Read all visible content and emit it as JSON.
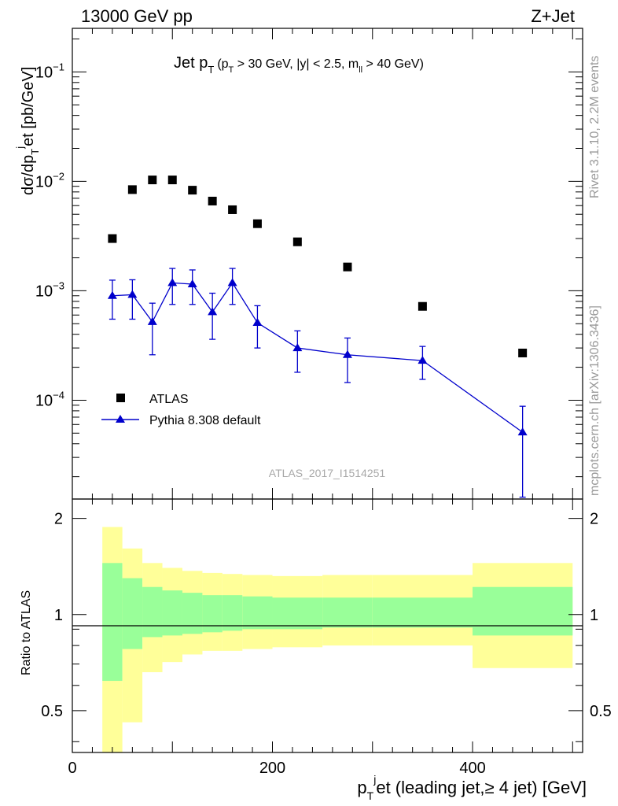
{
  "header": {
    "left": "13000 GeV pp",
    "right": "Z+Jet"
  },
  "title": {
    "main": "Jet p",
    "main_sub": "T",
    "cond_a": "(p",
    "cond_a_sub": "T",
    "cond_b": " > 30 GeV, |y| < 2.5, m",
    "cond_b_sub": "ll",
    "cond_c": " > 40 GeV)"
  },
  "side": {
    "rivet": "Rivet 3.1.10,  2.2M events",
    "mcplots": "mcplots.cern.ch [arXiv:1306.3436]"
  },
  "watermark": "ATLAS_2017_I1514251",
  "axes": {
    "main_ylabel": {
      "a": "dσ/dp",
      "a_sub": "T",
      "a_sup": "j",
      "b": "et [pb/GeV]"
    },
    "ratio_ylabel": "Ratio to ATLAS",
    "xlabel": {
      "a": "p",
      "a_sub": "T",
      "a_sup": "j",
      "b": "et (leading jet,≥ 4 jet) [GeV]"
    },
    "y_ticks": [
      {
        "base": "10",
        "exp": "−1",
        "value": 0.1
      },
      {
        "base": "10",
        "exp": "−2",
        "value": 0.01
      },
      {
        "base": "10",
        "exp": "−3",
        "value": 0.001
      },
      {
        "base": "10",
        "exp": "−4",
        "value": 0.0001
      }
    ],
    "ratio_ticks": [
      "2",
      "1",
      "0.5"
    ],
    "x_ticks": [
      "0",
      "200",
      "400"
    ]
  },
  "legend": [
    {
      "label": "ATLAS",
      "marker": "square",
      "color": "#000000"
    },
    {
      "label": "Pythia 8.308 default",
      "marker": "triangle",
      "color": "#0000cc"
    }
  ],
  "chart_data": {
    "type": "scatter",
    "xlim": [
      0,
      510
    ],
    "ylim": [
      1.25e-05,
      0.25
    ],
    "ratio_ylim": [
      0.37,
      2.3
    ],
    "yscale": "log",
    "bins": [
      [
        30,
        50
      ],
      [
        50,
        70
      ],
      [
        70,
        90
      ],
      [
        90,
        110
      ],
      [
        110,
        130
      ],
      [
        130,
        150
      ],
      [
        150,
        170
      ],
      [
        170,
        200
      ],
      [
        200,
        250
      ],
      [
        250,
        300
      ],
      [
        300,
        400
      ],
      [
        400,
        500
      ]
    ],
    "x": [
      40,
      60,
      80,
      100,
      120,
      140,
      160,
      185,
      225,
      275,
      350,
      450
    ],
    "series": [
      {
        "name": "ATLAS",
        "values": [
          0.003,
          0.0084,
          0.0103,
          0.0103,
          0.0083,
          0.0066,
          0.0055,
          0.0041,
          0.0028,
          0.00165,
          0.00072,
          0.00027
        ]
      },
      {
        "name": "Pythia 8.308 default",
        "values": [
          0.0009,
          0.00092,
          0.00052,
          0.00118,
          0.00115,
          0.00064,
          0.00118,
          0.00051,
          0.0003,
          0.00026,
          0.00023,
          5.1e-05
        ],
        "err_low": [
          0.00055,
          0.00055,
          0.00026,
          0.00075,
          0.00075,
          0.00036,
          0.00075,
          0.0003,
          0.00018,
          0.000145,
          0.000155,
          1.3e-05
        ],
        "err_high": [
          0.00125,
          0.00126,
          0.00077,
          0.0016,
          0.00155,
          0.00095,
          0.0016,
          0.00073,
          0.00043,
          0.00037,
          0.00031,
          8.8e-05
        ]
      }
    ],
    "ratio_bands": {
      "inner_low": [
        0.62,
        0.78,
        0.85,
        0.86,
        0.87,
        0.88,
        0.89,
        0.9,
        0.9,
        0.91,
        0.91,
        0.86
      ],
      "inner_high": [
        1.45,
        1.3,
        1.22,
        1.19,
        1.17,
        1.15,
        1.15,
        1.14,
        1.13,
        1.13,
        1.13,
        1.22
      ],
      "outer_low": [
        0.34,
        0.46,
        0.66,
        0.71,
        0.75,
        0.77,
        0.77,
        0.78,
        0.79,
        0.8,
        0.8,
        0.68
      ],
      "outer_high": [
        1.88,
        1.61,
        1.45,
        1.4,
        1.37,
        1.35,
        1.34,
        1.33,
        1.32,
        1.33,
        1.33,
        1.45
      ],
      "inner_color": "#99ff99",
      "outer_color": "#ffff99"
    }
  }
}
